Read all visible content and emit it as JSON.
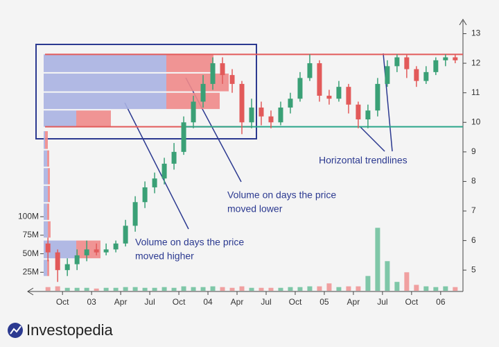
{
  "chart_data": {
    "type": "candlestick",
    "xlim": [
      -1.8,
      41.3
    ],
    "xticks": [
      {
        "value": 0,
        "label": "Oct"
      },
      {
        "value": 3,
        "label": "03"
      },
      {
        "value": 6,
        "label": "Apr"
      },
      {
        "value": 9,
        "label": "Jul"
      },
      {
        "value": 12,
        "label": "Oct"
      },
      {
        "value": 15,
        "label": "04"
      },
      {
        "value": 18,
        "label": "Apr"
      },
      {
        "value": 21,
        "label": "Jul"
      },
      {
        "value": 24,
        "label": "Oct"
      },
      {
        "value": 27,
        "label": "05"
      },
      {
        "value": 30,
        "label": "Apr"
      },
      {
        "value": 33,
        "label": "Jul"
      },
      {
        "value": 36,
        "label": "Oct"
      },
      {
        "value": 39,
        "label": "06"
      }
    ],
    "ylim": [
      4.3,
      13.2
    ],
    "yticks": [
      5,
      6,
      7,
      8,
      9,
      10,
      11,
      12,
      13
    ],
    "y2lim": [
      0,
      355
    ],
    "y2ticks": [
      {
        "value": 25,
        "label": "25M"
      },
      {
        "value": 50,
        "label": "50M"
      },
      {
        "value": 75,
        "label": "75M"
      },
      {
        "value": 100,
        "label": "100M"
      }
    ],
    "up_color": "#3aa076",
    "down_color": "#e25a5a",
    "candles": {
      "x": [
        -1.5,
        -0.5,
        0.5,
        1.5,
        2.5,
        3.5,
        4.5,
        5.5,
        6.5,
        7.5,
        8.5,
        9.5,
        10.5,
        11.5,
        12.5,
        13.5,
        14.5,
        15.5,
        16.5,
        17.5,
        18.5,
        19.5,
        20.5,
        21.5,
        22.5,
        23.5,
        24.5,
        25.5,
        26.5,
        27.5,
        28.5,
        29.5,
        30.5,
        31.5,
        32.5,
        33.5,
        34.5,
        35.5,
        36.5,
        37.5,
        38.5,
        39.5,
        40.5
      ],
      "open": [
        5.9,
        5.6,
        5.0,
        5.2,
        5.5,
        5.7,
        5.6,
        5.7,
        5.9,
        6.5,
        7.3,
        7.8,
        8.1,
        8.6,
        9.0,
        10.0,
        10.7,
        11.3,
        12.0,
        11.6,
        11.3,
        10.0,
        10.5,
        10.2,
        10.0,
        10.5,
        10.8,
        11.5,
        12.0,
        10.9,
        10.8,
        11.2,
        10.6,
        10.1,
        10.4,
        11.3,
        11.9,
        12.2,
        11.8,
        11.4,
        11.7,
        12.1,
        12.2
      ],
      "high": [
        6.1,
        5.7,
        5.4,
        5.7,
        6.0,
        5.9,
        5.9,
        6.0,
        6.7,
        7.5,
        8.0,
        8.3,
        8.8,
        9.3,
        10.2,
        10.9,
        11.6,
        12.2,
        12.2,
        11.8,
        11.4,
        10.8,
        10.7,
        10.4,
        10.7,
        11.0,
        11.7,
        12.3,
        12.1,
        11.1,
        11.4,
        11.3,
        10.7,
        10.6,
        11.5,
        12.1,
        12.3,
        12.3,
        11.9,
        11.9,
        12.2,
        12.3,
        12.3
      ],
      "low": [
        5.3,
        4.6,
        4.8,
        5.0,
        5.3,
        5.5,
        5.5,
        5.6,
        5.8,
        6.3,
        7.1,
        7.6,
        7.9,
        8.4,
        8.9,
        9.8,
        10.5,
        11.1,
        11.3,
        11.0,
        9.6,
        9.8,
        9.9,
        9.8,
        9.9,
        10.3,
        10.7,
        11.4,
        10.7,
        10.6,
        10.7,
        10.3,
        9.8,
        9.8,
        10.2,
        11.2,
        11.7,
        11.5,
        11.2,
        11.3,
        11.6,
        11.9,
        12.0
      ],
      "close": [
        5.6,
        5.0,
        5.2,
        5.5,
        5.7,
        5.6,
        5.7,
        5.9,
        6.5,
        7.3,
        7.8,
        8.1,
        8.6,
        9.0,
        10.0,
        10.7,
        11.3,
        12.0,
        11.6,
        11.3,
        10.0,
        10.5,
        10.2,
        10.0,
        10.5,
        10.8,
        11.5,
        12.0,
        10.9,
        10.8,
        11.2,
        10.6,
        10.1,
        10.4,
        11.3,
        11.9,
        12.2,
        11.8,
        11.4,
        11.7,
        12.1,
        12.2,
        12.1
      ],
      "volume": [
        5,
        6,
        4,
        4,
        4,
        3,
        4,
        4,
        5,
        5,
        4,
        4,
        5,
        4,
        6,
        5,
        5,
        6,
        5,
        4,
        6,
        4,
        4,
        4,
        4,
        5,
        5,
        6,
        6,
        10,
        5,
        6,
        6,
        20,
        85,
        40,
        12,
        25,
        8,
        6,
        5,
        6,
        5
      ]
    },
    "profile": {
      "up_color": "#aab3e2",
      "down_color": "#f08a8a",
      "lo": [
        11.7,
        11.05,
        10.45,
        9.85,
        9.1,
        8.5,
        7.9,
        7.3,
        6.7,
        6.1,
        5.4,
        4.8
      ],
      "hi": [
        12.3,
        11.65,
        11.0,
        10.4,
        9.7,
        9.05,
        8.45,
        7.85,
        7.25,
        6.65,
        6.0,
        5.35
      ],
      "up": [
        177,
        177,
        177,
        47,
        2,
        5,
        6,
        6,
        5,
        6,
        47,
        5
      ],
      "down": [
        68,
        90,
        77,
        50,
        4,
        3,
        3,
        3,
        3,
        4,
        35,
        3
      ]
    },
    "trendlines": [
      {
        "value": 12.3,
        "color": "#e25a5a",
        "from": -1.8,
        "to": 41.3
      },
      {
        "value": 9.85,
        "color": "#e25a5a",
        "from": -1.8,
        "to": 19.5
      },
      {
        "value": 9.85,
        "color": "#2aa58a",
        "from": 12.3,
        "to": 41.3
      }
    ],
    "annotations": [
      [
        "Volume on days the price",
        "moved higher"
      ],
      [
        "Volume on days the price",
        "moved lower"
      ],
      [
        "Horizontal trendlines"
      ]
    ],
    "brand": "Investopedia"
  }
}
